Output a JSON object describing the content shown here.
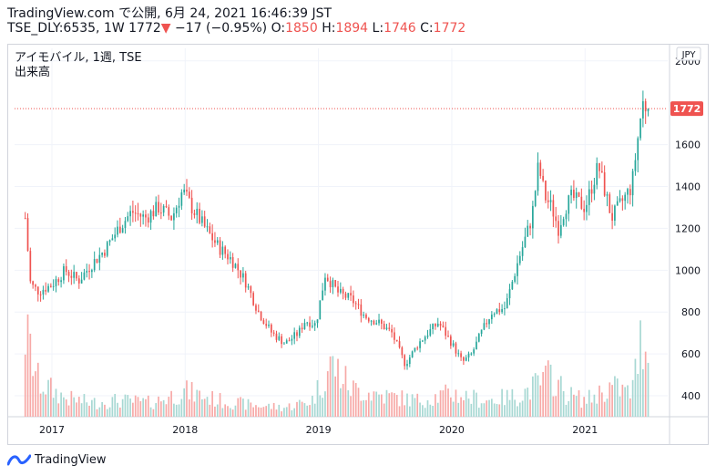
{
  "header": {
    "line1": "TradingView.com で公開, 6月 24, 2021 16:46:39 JST",
    "symbol_info": "TSE_DLY:6535, 1W 1772",
    "change_arrow": "▼",
    "change": "−17 (−0.95%)",
    "o_label": "O:",
    "o_value": "1850",
    "h_label": "H:",
    "h_value": "1894",
    "l_label": "L:",
    "l_value": "1746",
    "c_label": "C:",
    "c_value": "1772"
  },
  "legend": {
    "title": "アイモバイル, 1週, TSE",
    "volume_label": "出来高"
  },
  "footer": {
    "brand": "TradingView"
  },
  "colors": {
    "up": "#26a69a",
    "down": "#ef5350",
    "vol_up": "#a7d8d3",
    "vol_down": "#f7a9a7",
    "grid": "#f0f3fa",
    "price_line": "#ef5350"
  },
  "chart_data": {
    "type": "candlestick",
    "title": "アイモバイル, 1週, TSE",
    "series": [
      {
        "name": "price_path",
        "x": [
          2016.8,
          2016.84,
          2016.9,
          2017.0,
          2017.1,
          2017.2,
          2017.3,
          2017.4,
          2017.5,
          2017.6,
          2017.7,
          2017.8,
          2017.9,
          2017.98,
          2018.05,
          2018.15,
          2018.25,
          2018.35,
          2018.45,
          2018.55,
          2018.65,
          2018.75,
          2018.85,
          2018.9,
          2018.98,
          2019.05,
          2019.15,
          2019.25,
          2019.35,
          2019.45,
          2019.55,
          2019.65,
          2019.75,
          2019.82,
          2019.9,
          2020.0,
          2020.08,
          2020.15,
          2020.22,
          2020.3,
          2020.4,
          2020.5,
          2020.6,
          2020.65,
          2020.7,
          2020.75,
          2020.8,
          2020.85,
          2020.9,
          2021.0,
          2021.1,
          2021.2,
          2021.3,
          2021.35,
          2021.4,
          2021.43,
          2021.47
        ],
        "values": [
          1250,
          930,
          900,
          930,
          1000,
          950,
          1030,
          1100,
          1200,
          1280,
          1250,
          1300,
          1250,
          1380,
          1300,
          1200,
          1110,
          1050,
          950,
          800,
          700,
          650,
          700,
          760,
          740,
          980,
          890,
          860,
          780,
          750,
          700,
          550,
          650,
          700,
          750,
          650,
          560,
          600,
          700,
          800,
          820,
          1050,
          1250,
          1500,
          1350,
          1300,
          1200,
          1300,
          1350,
          1300,
          1500,
          1250,
          1350,
          1400,
          1650,
          1800,
          1772
        ]
      },
      {
        "name": "volume_profile",
        "x": [
          2016.8,
          2016.9,
          2017.1,
          2017.3,
          2017.5,
          2017.75,
          2018.0,
          2018.25,
          2018.5,
          2018.75,
          2018.95,
          2019.1,
          2019.25,
          2019.5,
          2019.75,
          2020.0,
          2020.25,
          2020.5,
          2020.65,
          2020.75,
          2020.85,
          2021.0,
          2021.2,
          2021.35,
          2021.43
        ],
        "values": [
          0.72,
          0.3,
          0.16,
          0.12,
          0.14,
          0.12,
          0.22,
          0.14,
          0.1,
          0.08,
          0.14,
          0.46,
          0.24,
          0.18,
          0.14,
          0.2,
          0.14,
          0.18,
          0.28,
          0.36,
          0.2,
          0.14,
          0.26,
          0.2,
          0.72
        ]
      }
    ],
    "last_price": 1772,
    "currency": "JPY",
    "y_ticks": [
      400,
      600,
      800,
      1000,
      1200,
      1400,
      1600,
      2000
    ],
    "y_tick_labels": [
      "400",
      "600",
      "800",
      "1000",
      "1200",
      "1400",
      "1600",
      "2000"
    ],
    "x_ticks": [
      2017,
      2018,
      2019,
      2020,
      2021
    ],
    "x_tick_labels": [
      "2017",
      "2018",
      "2019",
      "2020",
      "2021"
    ],
    "ylim": [
      300,
      2060
    ],
    "xlim": [
      2016.72,
      2021.62
    ],
    "grid": true
  }
}
